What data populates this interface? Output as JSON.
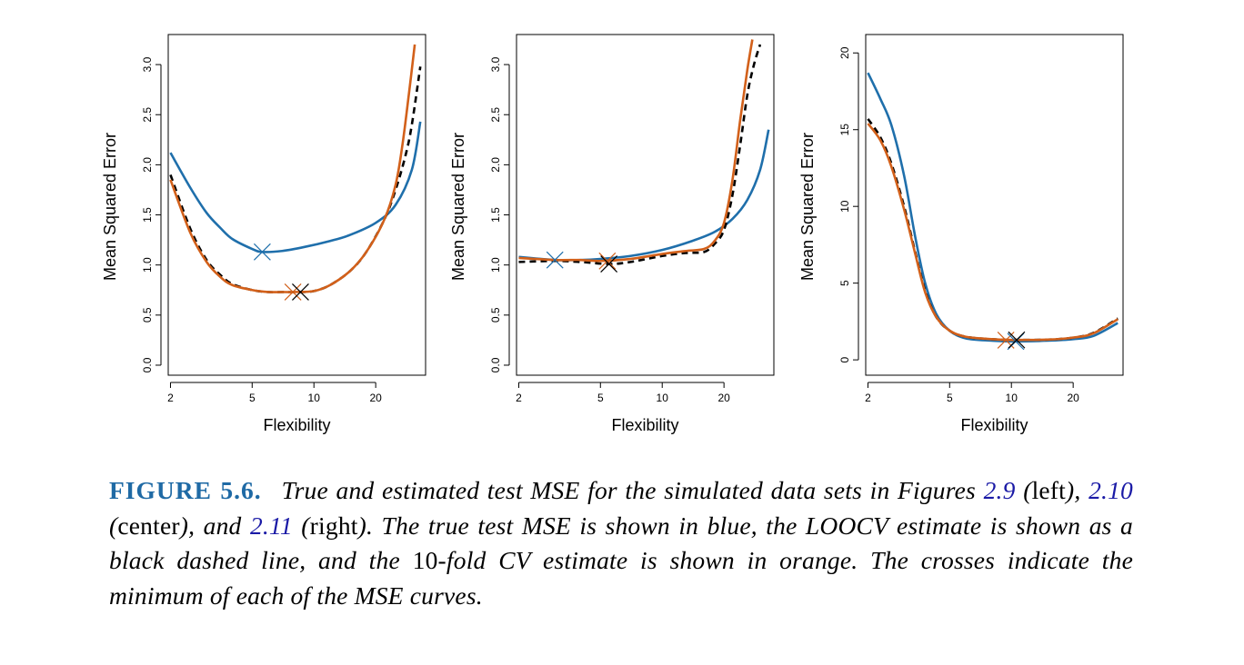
{
  "chart_data": [
    {
      "type": "line",
      "xlabel": "Flexibility",
      "ylabel": "Mean Squared Error",
      "xscale": "log",
      "xlim": [
        1.95,
        35
      ],
      "ylim": [
        -0.1,
        3.3
      ],
      "xticks": [
        2,
        5,
        10,
        20
      ],
      "yticks": [
        0.0,
        0.5,
        1.0,
        1.5,
        2.0,
        2.5,
        3.0
      ],
      "ytick_labels": [
        "0.0",
        "0.5",
        "1.0",
        "1.5",
        "2.0",
        "2.5",
        "3.0"
      ],
      "grid": false,
      "series": [
        {
          "color": "#1f6fab",
          "style": "solid",
          "x": [
            2,
            2.5,
            3,
            3.5,
            4,
            5,
            5.6,
            7,
            9,
            12,
            15,
            20,
            25,
            30,
            33
          ],
          "y": [
            2.12,
            1.77,
            1.52,
            1.37,
            1.26,
            1.16,
            1.13,
            1.14,
            1.18,
            1.24,
            1.3,
            1.42,
            1.6,
            1.95,
            2.43
          ]
        },
        {
          "color": "#000000",
          "style": "dashed",
          "x": [
            2,
            2.5,
            3,
            3.5,
            4,
            5,
            6,
            7,
            8.5,
            10,
            12,
            15,
            18,
            22,
            25,
            28,
            30,
            33
          ],
          "y": [
            1.9,
            1.36,
            1.05,
            0.9,
            0.81,
            0.75,
            0.73,
            0.73,
            0.73,
            0.74,
            0.8,
            0.94,
            1.13,
            1.45,
            1.75,
            2.1,
            2.4,
            2.98
          ]
        },
        {
          "color": "#d2601a",
          "style": "solid",
          "x": [
            2,
            2.5,
            3,
            3.5,
            4,
            5,
            6,
            7,
            8,
            10,
            12,
            15,
            18,
            22,
            25,
            27,
            29,
            31
          ],
          "y": [
            1.85,
            1.32,
            1.03,
            0.88,
            0.8,
            0.75,
            0.73,
            0.73,
            0.73,
            0.74,
            0.8,
            0.94,
            1.13,
            1.45,
            1.8,
            2.2,
            2.7,
            3.2
          ]
        }
      ],
      "minima": [
        {
          "color": "#1f6fab",
          "x": 5.6,
          "y": 1.13
        },
        {
          "color": "#d2601a",
          "x": 7.9,
          "y": 0.73
        },
        {
          "color": "#000000",
          "x": 8.6,
          "y": 0.73
        }
      ]
    },
    {
      "type": "line",
      "xlabel": "Flexibility",
      "ylabel": "Mean Squared Error",
      "xscale": "log",
      "xlim": [
        1.95,
        35
      ],
      "ylim": [
        -0.1,
        3.3
      ],
      "xticks": [
        2,
        5,
        10,
        20
      ],
      "yticks": [
        0.0,
        0.5,
        1.0,
        1.5,
        2.0,
        2.5,
        3.0
      ],
      "ytick_labels": [
        "0.0",
        "0.5",
        "1.0",
        "1.5",
        "2.0",
        "2.5",
        "3.0"
      ],
      "grid": false,
      "series": [
        {
          "color": "#1f6fab",
          "style": "solid",
          "x": [
            2,
            3,
            4,
            5,
            7,
            10,
            14,
            18,
            22,
            26,
            30,
            33
          ],
          "y": [
            1.08,
            1.05,
            1.05,
            1.06,
            1.09,
            1.15,
            1.24,
            1.33,
            1.46,
            1.65,
            1.95,
            2.35
          ]
        },
        {
          "color": "#000000",
          "style": "dashed",
          "x": [
            2,
            3,
            4,
            5.5,
            7,
            10,
            13,
            16,
            18,
            20,
            22,
            24,
            26,
            28,
            30
          ],
          "y": [
            1.03,
            1.04,
            1.03,
            1.01,
            1.03,
            1.09,
            1.12,
            1.13,
            1.21,
            1.35,
            1.7,
            2.2,
            2.7,
            3.0,
            3.2
          ]
        },
        {
          "color": "#d2601a",
          "style": "solid",
          "x": [
            2,
            3,
            4,
            5,
            7,
            10,
            13,
            16,
            18,
            20,
            22,
            24,
            26,
            27.5
          ],
          "y": [
            1.07,
            1.05,
            1.05,
            1.04,
            1.06,
            1.11,
            1.14,
            1.16,
            1.24,
            1.42,
            1.85,
            2.45,
            2.95,
            3.25
          ]
        }
      ],
      "minima": [
        {
          "color": "#1f6fab",
          "x": 3.0,
          "y": 1.05
        },
        {
          "color": "#d2601a",
          "x": 5.4,
          "y": 1.04
        },
        {
          "color": "#000000",
          "x": 5.5,
          "y": 1.01
        }
      ]
    },
    {
      "type": "line",
      "xlabel": "Flexibility",
      "ylabel": "Mean Squared Error",
      "xscale": "log",
      "xlim": [
        1.95,
        35
      ],
      "ylim": [
        -1,
        21.2
      ],
      "xticks": [
        2,
        5,
        10,
        20
      ],
      "yticks": [
        0,
        5,
        10,
        15,
        20
      ],
      "ytick_labels": [
        "0",
        "5",
        "10",
        "15",
        "20"
      ],
      "grid": false,
      "series": [
        {
          "color": "#1f6fab",
          "style": "solid",
          "x": [
            2,
            2.3,
            2.6,
            3.0,
            3.4,
            3.8,
            4.3,
            5,
            6,
            8,
            10,
            15,
            20,
            25,
            33
          ],
          "y": [
            18.7,
            17.0,
            15.3,
            12.0,
            8.0,
            5.0,
            3.0,
            1.9,
            1.4,
            1.25,
            1.2,
            1.25,
            1.35,
            1.55,
            2.4
          ]
        },
        {
          "color": "#000000",
          "style": "dashed",
          "x": [
            2,
            2.3,
            2.6,
            3.0,
            3.4,
            3.8,
            4.3,
            5,
            6,
            8,
            10,
            15,
            20,
            25,
            33
          ],
          "y": [
            15.7,
            14.5,
            12.8,
            10.0,
            7.0,
            4.5,
            2.8,
            1.9,
            1.5,
            1.35,
            1.3,
            1.32,
            1.45,
            1.75,
            2.7
          ]
        },
        {
          "color": "#d2601a",
          "style": "solid",
          "x": [
            2,
            2.3,
            2.6,
            3.0,
            3.4,
            3.8,
            4.3,
            5,
            6,
            8,
            10,
            15,
            20,
            25,
            33
          ],
          "y": [
            15.4,
            14.3,
            12.6,
            9.8,
            6.9,
            4.4,
            2.8,
            1.9,
            1.5,
            1.35,
            1.3,
            1.32,
            1.45,
            1.72,
            2.65
          ]
        }
      ],
      "minima": [
        {
          "color": "#d2601a",
          "x": 9.4,
          "y": 1.28
        },
        {
          "color": "#1f6fab",
          "x": 10.5,
          "y": 1.2
        },
        {
          "color": "#000000",
          "x": 10.6,
          "y": 1.3
        }
      ]
    }
  ],
  "caption": {
    "label": "FIGURE 5.6.",
    "t1": "True and estimated test MSE for the simulated data sets in Figures ",
    "ref1": "2.9",
    "t2": " (",
    "w1": "left",
    "t3": "), ",
    "ref2": "2.10",
    "t4": " (",
    "w2": "center",
    "t5": "), and ",
    "ref3": "2.11",
    "t6": " (",
    "w3": "right",
    "t7": "). The true test MSE is shown in blue, the LOOCV estimate is shown as a black dashed line, and the ",
    "n1": "10",
    "t8": "-fold CV estimate is shown in orange. The crosses indicate the minimum of each of the MSE curves."
  }
}
